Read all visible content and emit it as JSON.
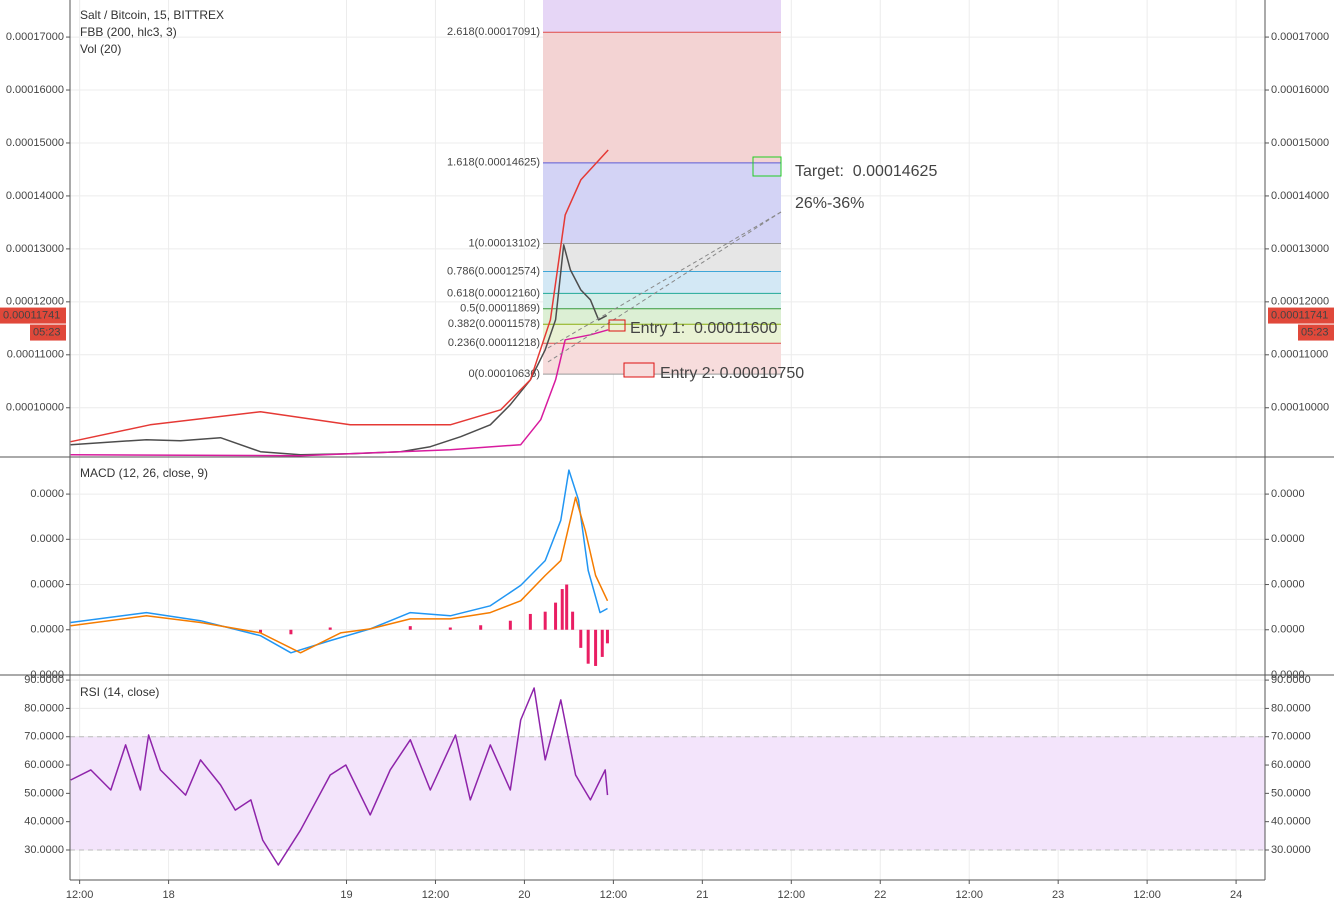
{
  "chart_data": [
    {
      "type": "line",
      "title": "Salt / Bitcoin, 15, BITTREX",
      "indicators": [
        "FBB (200, hlc3, 3)",
        "Vol (20)"
      ],
      "xlim": [
        10.7,
        171.9
      ],
      "ylim": [
        9.07e-05,
        0.000177
      ],
      "grid": true,
      "yticks": [
        {
          "value": 0.00017,
          "label": "0.00017000"
        },
        {
          "value": 0.00016,
          "label": "0.00016000"
        },
        {
          "value": 0.00015,
          "label": "0.00015000"
        },
        {
          "value": 0.00014,
          "label": "0.00014000"
        },
        {
          "value": 0.00013,
          "label": "0.00013000"
        },
        {
          "value": 0.00012,
          "label": "0.00012000"
        },
        {
          "value": 0.00011,
          "label": "0.00011000"
        },
        {
          "value": 0.0001,
          "label": "0.00010000"
        }
      ],
      "series": [
        {
          "color": "#4d4d4d",
          "x": [
            10.8,
            21.0,
            25.6,
            31.0,
            36.4,
            41.8,
            48.5,
            55.3,
            59.3,
            63.4,
            67.4,
            70.1,
            72.8,
            74.8,
            76.2,
            77.3,
            78.2,
            79.6,
            80.9,
            82.0,
            83.1
          ],
          "values": [
            9.302e-05,
            9.396e-05,
            9.377e-05,
            9.434e-05,
            9.17e-05,
            9.113e-05,
            9.132e-05,
            9.17e-05,
            9.264e-05,
            9.453e-05,
            9.679e-05,
            0.00010057,
            0.00010528,
            0.00011094,
            0.0001166,
            0.00013075,
            0.00012604,
            0.00012226,
            0.00012038,
            0.0001166,
            0.00011741
          ]
        },
        {
          "color": "#e53935",
          "x": [
            10.8,
            21.5,
            36.4,
            48.5,
            62.0,
            68.8,
            72.8,
            75.5,
            77.5,
            79.6,
            83.3
          ],
          "values": [
            9.358e-05,
            9.679e-05,
            9.925e-05,
            9.679e-05,
            9.679e-05,
            9.962e-05,
            0.00010528,
            0.0001166,
            0.00013642,
            0.00014302,
            0.00014868
          ]
        },
        {
          "color": "#d81b9e",
          "x": [
            10.8,
            41.8,
            62.0,
            71.5,
            74.2,
            76.2,
            77.5,
            80.9,
            83.3
          ],
          "values": [
            9.113e-05,
            9.094e-05,
            9.208e-05,
            9.302e-05,
            9.774e-05,
            0.00010528,
            0.00011283,
            0.00011377,
            0.00011472
          ]
        }
      ],
      "last_price": 0.00011741,
      "countdown": "05:23",
      "last_price_color": "#e0483a",
      "fib_top_fill": "#e6d6f6",
      "fib": [
        {
          "label": "2.618(0.00017091)",
          "value": 0.00017091,
          "color": "#e04b4b",
          "fill": "#f3d3d3"
        },
        {
          "label": "1.618(0.00014625)",
          "value": 0.00014625,
          "color": "#5b5bd6",
          "fill": "#d3d3f5"
        },
        {
          "label": "1(0.00013102)",
          "value": 0.00013102,
          "color": "#9a9a9a",
          "fill": "#e6e6e6"
        },
        {
          "label": "0.786(0.00012574)",
          "value": 0.00012574,
          "color": "#3ea6d8",
          "fill": "#d3e8f5"
        },
        {
          "label": "0.618(0.00012160)",
          "value": 0.0001216,
          "color": "#20a898",
          "fill": "#d4eee9"
        },
        {
          "label": "0.5(0.00011869)",
          "value": 0.00011869,
          "color": "#3a9a3a",
          "fill": "#dcefd4"
        },
        {
          "label": "0.382(0.00011578)",
          "value": 0.00011578,
          "color": "#8aae10",
          "fill": "#e9f2d4"
        },
        {
          "label": "0.236(0.00011218)",
          "value": 0.00011218,
          "color": "#e04b4b",
          "fill": "#f7dcdc"
        },
        {
          "label": "0(0.00010636)",
          "value": 0.00010636,
          "color": "#9a9a9a"
        }
      ],
      "annotations": [
        {
          "text": "Target:  0.00014625",
          "color": "#22cc22"
        },
        {
          "text": "26%-36%",
          "color": "#22cc22"
        },
        {
          "text": "Entry 1:  0.00011600",
          "color": "#dd1111"
        },
        {
          "text": "Entry 2: 0.00010750",
          "color": "#dd1111"
        }
      ]
    },
    {
      "type": "line",
      "title": "MACD (12, 26, close, 9)",
      "xlim": [
        10.7,
        171.9
      ],
      "ylim": [
        -1e-06,
        3.82e-06
      ],
      "grid": true,
      "yticks": [
        {
          "value": 3e-06,
          "label": "0.0000"
        },
        {
          "value": 2e-06,
          "label": "0.0000"
        },
        {
          "value": 1e-06,
          "label": "0.0000"
        },
        {
          "value": 0,
          "label": "0.0000"
        },
        {
          "value": -1e-06,
          "label": "0.0000"
        }
      ],
      "series": [
        {
          "type": "bar",
          "color": "#e91e63",
          "x": [
            36.4,
            40.5,
            45.8,
            56.6,
            62.0,
            66.1,
            70.1,
            72.8,
            74.8,
            76.2,
            77.1,
            77.7,
            78.5,
            79.6,
            80.6,
            81.6,
            82.5,
            83.2
          ],
          "values": [
            -7e-08,
            -1e-07,
            5e-08,
            8e-08,
            5e-08,
            1e-07,
            2e-07,
            3.5e-07,
            4e-07,
            6e-07,
            9e-07,
            1e-06,
            4e-07,
            -4e-07,
            -7.5e-07,
            -8e-07,
            -6e-07,
            -3e-07
          ]
        },
        {
          "color": "#2196f3",
          "x": [
            10.8,
            21.0,
            28.3,
            36.4,
            40.5,
            45.8,
            51.2,
            56.6,
            62.0,
            67.4,
            71.5,
            74.8,
            76.9,
            78.0,
            79.3,
            80.6,
            82.2,
            83.2
          ],
          "values": [
            1.6e-07,
            3.8e-07,
            2e-07,
            -1.3e-07,
            -5.1e-07,
            -2.4e-07,
            2e-08,
            3.8e-07,
            3.1e-07,
            5.3e-07,
            9.8e-07,
            1.53e-06,
            2.42e-06,
            3.53e-06,
            2.87e-06,
            1.31e-06,
            3.8e-07,
            4.7e-07
          ]
        },
        {
          "color": "#f57c00",
          "x": [
            10.8,
            21.0,
            28.3,
            36.4,
            41.8,
            47.2,
            51.2,
            56.6,
            62.0,
            67.4,
            71.5,
            74.8,
            76.9,
            78.9,
            80.2,
            81.6,
            83.2
          ],
          "values": [
            9e-08,
            3.1e-07,
            1.6e-07,
            -7e-08,
            -5.1e-07,
            -7e-08,
            2e-08,
            2.4e-07,
            2.4e-07,
            3.8e-07,
            6.4e-07,
            1.2e-06,
            1.53e-06,
            2.93e-06,
            2.2e-06,
            1.2e-06,
            6.4e-07
          ]
        }
      ]
    },
    {
      "type": "line",
      "title": "RSI (14, close)",
      "xlim": [
        10.7,
        171.9
      ],
      "ylim": [
        19.4,
        91.8
      ],
      "grid": true,
      "band": [
        30,
        70
      ],
      "band_color": "#f3e4fb",
      "yticks": [
        {
          "value": 90,
          "label": "90.0000"
        },
        {
          "value": 80,
          "label": "80.0000"
        },
        {
          "value": 70,
          "label": "70.0000"
        },
        {
          "value": 60,
          "label": "60.0000"
        },
        {
          "value": 50,
          "label": "50.0000"
        },
        {
          "value": 40,
          "label": "40.0000"
        },
        {
          "value": 30,
          "label": "30.0000"
        }
      ],
      "xticks": [
        {
          "value": 12,
          "label": "12:00"
        },
        {
          "value": 24,
          "label": "18"
        },
        {
          "value": 48,
          "label": "19"
        },
        {
          "value": 60,
          "label": "12:00"
        },
        {
          "value": 72,
          "label": "20"
        },
        {
          "value": 84,
          "label": "12:00"
        },
        {
          "value": 96,
          "label": "21"
        },
        {
          "value": 108,
          "label": "12:00"
        },
        {
          "value": 120,
          "label": "22"
        },
        {
          "value": 132,
          "label": "12:00"
        },
        {
          "value": 144,
          "label": "23"
        },
        {
          "value": 156,
          "label": "12:00"
        },
        {
          "value": 168,
          "label": "24"
        }
      ],
      "series": [
        {
          "color": "#8e24aa",
          "x": [
            10.8,
            13.5,
            16.2,
            18.2,
            20.2,
            21.3,
            22.9,
            26.3,
            28.3,
            31.0,
            33.0,
            35.1,
            36.7,
            38.8,
            41.8,
            45.8,
            47.9,
            51.2,
            53.9,
            56.6,
            59.3,
            62.7,
            64.7,
            67.4,
            70.1,
            71.5,
            73.3,
            74.8,
            76.9,
            78.9,
            80.9,
            82.9,
            83.2
          ],
          "values": [
            54.7,
            58.3,
            51.2,
            67.1,
            51.2,
            70.6,
            58.3,
            49.4,
            61.8,
            53,
            44.1,
            47.7,
            33.5,
            24.7,
            37,
            56.5,
            60,
            42.4,
            58.3,
            68.9,
            51.2,
            70.6,
            47.7,
            67.1,
            51.2,
            75.9,
            87.2,
            61.8,
            83,
            56.5,
            47.7,
            58.3,
            49.4
          ]
        }
      ]
    }
  ]
}
